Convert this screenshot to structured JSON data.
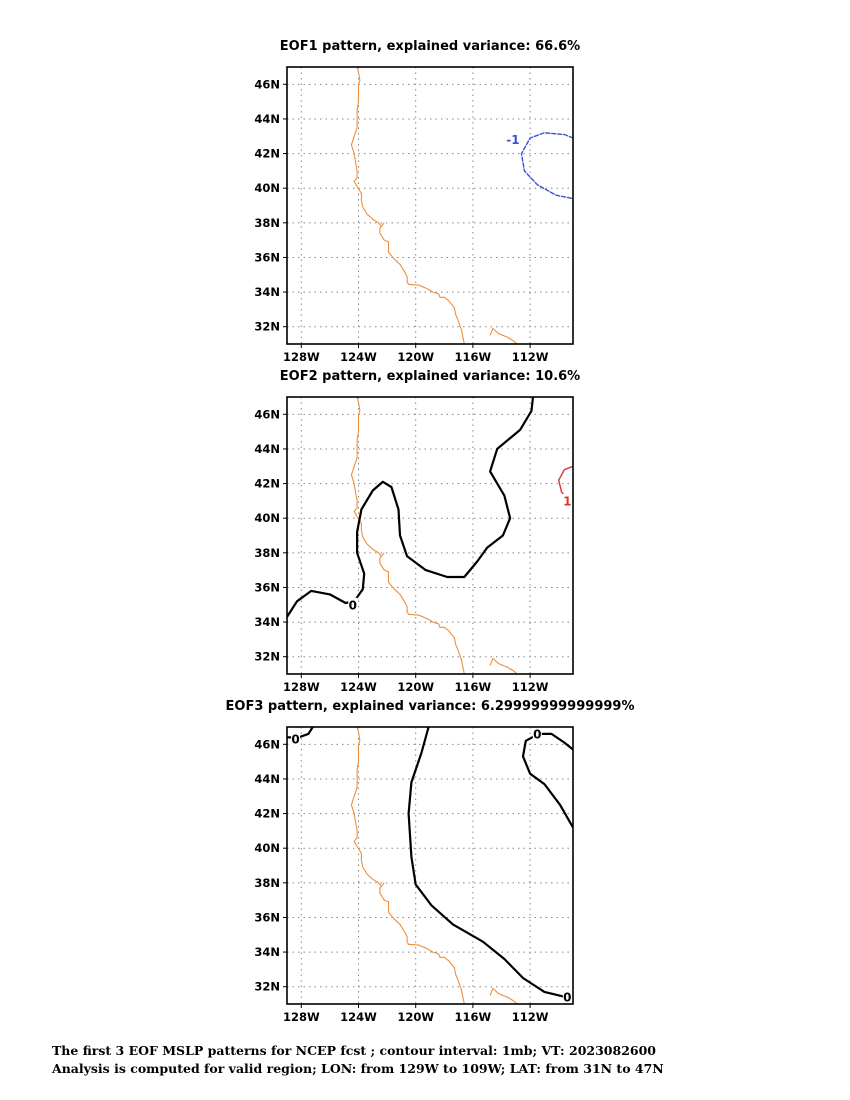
{
  "panels": [
    {
      "title": "EOF1 pattern, explained variance: 66.6%",
      "contours": [
        {
          "color": "#3355dd",
          "dash": "4,2",
          "width": 1.4,
          "label": "-1",
          "label_at": [
            -113.2,
            42.8
          ],
          "points": [
            [
              -109,
              42.9
            ],
            [
              -109.6,
              43.1
            ],
            [
              -111.0,
              43.2
            ],
            [
              -112.0,
              42.9
            ],
            [
              -112.6,
              42.0
            ],
            [
              -112.4,
              41.0
            ],
            [
              -111.5,
              40.2
            ],
            [
              -110.2,
              39.6
            ],
            [
              -109,
              39.4
            ]
          ]
        }
      ]
    },
    {
      "title": "EOF2 pattern, explained variance: 10.6%",
      "contours": [
        {
          "color": "#000000",
          "dash": "",
          "width": 2.2,
          "label": "0",
          "label_at": [
            -124.4,
            35.0
          ],
          "points": [
            [
              -129,
              34.3
            ],
            [
              -128.3,
              35.2
            ],
            [
              -127.3,
              35.8
            ],
            [
              -126.0,
              35.6
            ],
            [
              -124.9,
              35.1
            ],
            [
              -124.3,
              35.2
            ],
            [
              -123.7,
              35.9
            ],
            [
              -123.6,
              36.8
            ],
            [
              -124.1,
              38.0
            ],
            [
              -124.1,
              39.2
            ],
            [
              -123.8,
              40.5
            ],
            [
              -123.0,
              41.6
            ],
            [
              -122.3,
              42.1
            ],
            [
              -121.7,
              41.8
            ],
            [
              -121.2,
              40.5
            ],
            [
              -121.1,
              39.0
            ],
            [
              -120.6,
              37.8
            ],
            [
              -119.3,
              37.0
            ],
            [
              -117.8,
              36.6
            ],
            [
              -116.6,
              36.6
            ],
            [
              -115.7,
              37.5
            ],
            [
              -115.0,
              38.3
            ],
            [
              -113.9,
              39.0
            ],
            [
              -113.4,
              40.0
            ],
            [
              -113.8,
              41.3
            ],
            [
              -114.8,
              42.7
            ],
            [
              -114.3,
              44.0
            ],
            [
              -112.7,
              45.1
            ],
            [
              -111.9,
              46.2
            ],
            [
              -111.8,
              47
            ]
          ]
        },
        {
          "color": "#dd3333",
          "dash": "",
          "width": 1.4,
          "label": "1",
          "label_at": [
            -109.4,
            41.0
          ],
          "points": [
            [
              -109,
              43.0
            ],
            [
              -109.6,
              42.8
            ],
            [
              -110.0,
              42.2
            ],
            [
              -109.8,
              41.5
            ],
            [
              -109.3,
              41.1
            ]
          ]
        }
      ]
    },
    {
      "title": "EOF3 pattern, explained variance: 6.29999999999999%",
      "contours": [
        {
          "color": "#000000",
          "dash": "",
          "width": 2.2,
          "label": "0",
          "label_at": [
            -128.4,
            46.3
          ],
          "points": [
            [
              -129,
              46.4
            ],
            [
              -128.2,
              46.4
            ],
            [
              -127.5,
              46.6
            ],
            [
              -127.2,
              47
            ]
          ]
        },
        {
          "color": "#000000",
          "dash": "",
          "width": 2.2,
          "label": "0",
          "label_at": [
            -111.5,
            46.6
          ],
          "points": [
            [
              -109,
              45.7
            ],
            [
              -109.6,
              46.1
            ],
            [
              -110.5,
              46.6
            ],
            [
              -111.4,
              46.6
            ],
            [
              -112.3,
              46.2
            ],
            [
              -112.5,
              45.3
            ],
            [
              -112.0,
              44.3
            ],
            [
              -111.0,
              43.7
            ],
            [
              -109.9,
              42.5
            ],
            [
              -109,
              41.2
            ]
          ]
        },
        {
          "color": "#000000",
          "dash": "",
          "width": 2.2,
          "label": "0",
          "label_at": [
            -109.4,
            31.4
          ],
          "points": [
            [
              -119.1,
              47
            ],
            [
              -119.6,
              45.5
            ],
            [
              -120.3,
              43.8
            ],
            [
              -120.5,
              42.0
            ],
            [
              -120.3,
              39.5
            ],
            [
              -120.0,
              37.9
            ],
            [
              -118.9,
              36.7
            ],
            [
              -117.4,
              35.6
            ],
            [
              -115.3,
              34.6
            ],
            [
              -113.8,
              33.6
            ],
            [
              -112.5,
              32.5
            ],
            [
              -111.0,
              31.7
            ],
            [
              -109.5,
              31.4
            ]
          ]
        }
      ]
    }
  ],
  "coast": [
    [
      -124.1,
      47
    ],
    [
      -124.0,
      46.7
    ],
    [
      -123.9,
      46.2
    ],
    [
      -124.0,
      46.0
    ],
    [
      -124.0,
      45.5
    ],
    [
      -124.0,
      45.0
    ],
    [
      -124.1,
      44.5
    ],
    [
      -124.1,
      44.0
    ],
    [
      -124.1,
      43.5
    ],
    [
      -124.3,
      43.0
    ],
    [
      -124.5,
      42.5
    ],
    [
      -124.3,
      42.0
    ],
    [
      -124.2,
      41.5
    ],
    [
      -124.1,
      41.0
    ],
    [
      -124.1,
      40.6
    ],
    [
      -124.3,
      40.4
    ],
    [
      -124.1,
      40.1
    ],
    [
      -123.8,
      39.7
    ],
    [
      -123.8,
      39.3
    ],
    [
      -123.7,
      38.9
    ],
    [
      -123.4,
      38.5
    ],
    [
      -123.0,
      38.2
    ],
    [
      -122.6,
      38.0
    ],
    [
      -122.4,
      37.8
    ],
    [
      -122.2,
      38.0
    ],
    [
      -122.5,
      37.7
    ],
    [
      -122.5,
      37.4
    ],
    [
      -122.2,
      37.0
    ],
    [
      -121.9,
      36.9
    ],
    [
      -121.9,
      36.6
    ],
    [
      -121.9,
      36.3
    ],
    [
      -121.5,
      35.9
    ],
    [
      -121.1,
      35.6
    ],
    [
      -120.8,
      35.2
    ],
    [
      -120.6,
      34.9
    ],
    [
      -120.6,
      34.6
    ],
    [
      -120.5,
      34.45
    ],
    [
      -119.8,
      34.4
    ],
    [
      -119.2,
      34.2
    ],
    [
      -118.8,
      34.0
    ],
    [
      -118.4,
      33.9
    ],
    [
      -118.3,
      33.7
    ],
    [
      -118.0,
      33.7
    ],
    [
      -117.7,
      33.5
    ],
    [
      -117.3,
      33.1
    ],
    [
      -117.2,
      32.7
    ],
    [
      -117.1,
      32.5
    ],
    [
      -116.8,
      31.8
    ],
    [
      -116.6,
      31.0
    ]
  ],
  "gulf": [
    [
      -114.8,
      31.5
    ],
    [
      -114.7,
      31.7
    ],
    [
      -114.6,
      31.9
    ],
    [
      -114.2,
      31.6
    ],
    [
      -113.6,
      31.4
    ],
    [
      -113.2,
      31.2
    ],
    [
      -112.9,
      31.0
    ]
  ],
  "axes": {
    "x_ticks": [
      -128,
      -124,
      -120,
      -116,
      -112
    ],
    "x_labels": [
      "128W",
      "124W",
      "120W",
      "116W",
      "112W"
    ],
    "y_ticks": [
      32,
      34,
      36,
      38,
      40,
      42,
      44,
      46
    ],
    "y_labels": [
      "32N",
      "34N",
      "36N",
      "38N",
      "40N",
      "42N",
      "44N",
      "46N"
    ],
    "lon_range": [
      -129,
      -109
    ],
    "lat_range": [
      31,
      47
    ]
  },
  "caption": [
    "The first 3 EOF MSLP patterns for NCEP fcst ; contour interval: 1mb; VT: 2023082600",
    "Analysis is computed for valid region; LON: from 129W to 109W; LAT: from 31N to 47N"
  ],
  "colors": {
    "coast": "#ef8f3a",
    "grid": "#888888",
    "frame": "#000000"
  }
}
